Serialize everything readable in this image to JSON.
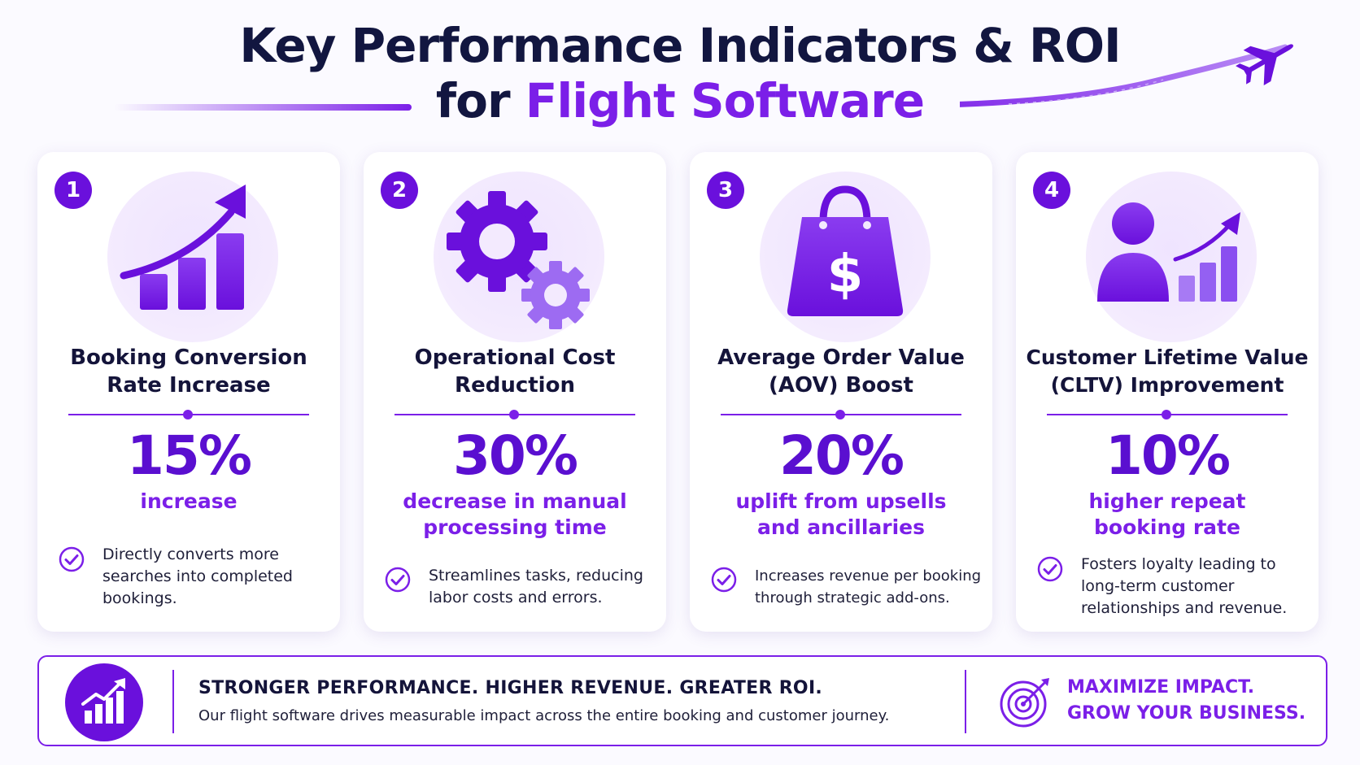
{
  "header": {
    "title_line1": "Key Performance Indicators & ROI",
    "title_line2_prefix": "for ",
    "title_line2_accent": "Flight Software"
  },
  "colors": {
    "accent": "#7b1fe8",
    "accent_dark": "#5a0fd0",
    "badge": "#6a10dc",
    "title": "#121640",
    "icon_circle": "#f1e7ff"
  },
  "cards": [
    {
      "number": "1",
      "icon": "growth-chart-icon",
      "title": "Booking Conversion\nRate Increase",
      "metric": "15%",
      "metric_desc": "increase",
      "note": "Directly converts more\nsearches into completed\nbookings."
    },
    {
      "number": "2",
      "icon": "gears-icon",
      "title": "Operational Cost\nReduction",
      "metric": "30%",
      "metric_desc": "decrease in manual\nprocessing time",
      "note": "Streamlines tasks, reducing\nlabor costs and errors."
    },
    {
      "number": "3",
      "icon": "shopping-bag-dollar-icon",
      "title": "Average Order Value\n(AOV) Boost",
      "metric": "20%",
      "metric_desc": "uplift from upsells\nand ancillaries",
      "note": "Increases revenue per booking\nthrough strategic add-ons."
    },
    {
      "number": "4",
      "icon": "customer-growth-icon",
      "title": "Customer Lifetime Value\n(CLTV) Improvement",
      "metric": "10%",
      "metric_desc": "higher repeat\nbooking rate",
      "note": "Fosters loyalty leading to\nlong-term customer\nrelationships and revenue."
    }
  ],
  "banner": {
    "icon": "bar-chart-arrow-icon",
    "headline": "STRONGER PERFORMANCE. HIGHER REVENUE. GREATER ROI.",
    "subtext": "Our flight software drives measurable impact across the entire booking and customer journey.",
    "target_icon": "target-arrow-icon",
    "cta": "MAXIMIZE IMPACT.\nGROW YOUR BUSINESS."
  }
}
